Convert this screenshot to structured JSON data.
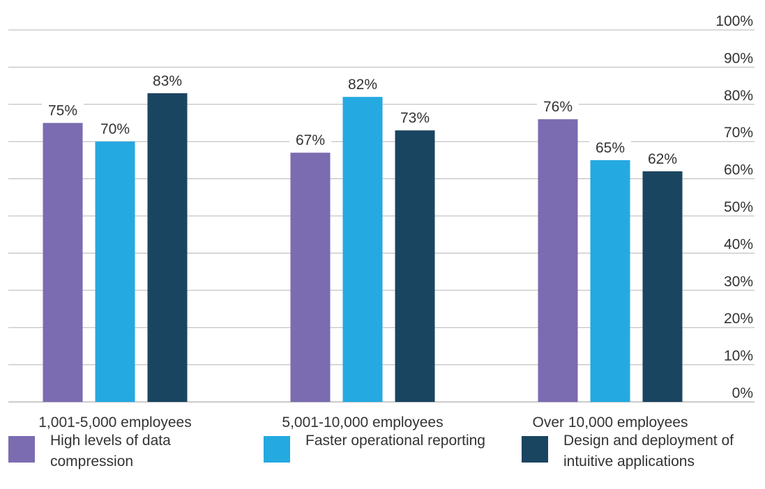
{
  "chart_data": {
    "type": "bar",
    "title": "",
    "xlabel": "",
    "ylabel": "",
    "ylim": [
      0,
      100
    ],
    "y_ticks": [
      "0%",
      "10%",
      "20%",
      "30%",
      "40%",
      "50%",
      "60%",
      "70%",
      "80%",
      "90%",
      "100%"
    ],
    "y_axis_side": "right",
    "grid": true,
    "legend_position": "bottom",
    "categories": [
      "1,001-5,000 employees",
      "5,001-10,000 employees",
      "Over 10,000 employees"
    ],
    "series": [
      {
        "name": "High levels of data compression",
        "color": "#7b6bb0",
        "values": [
          75,
          67,
          76
        ],
        "labels": [
          "75%",
          "67%",
          "76%"
        ]
      },
      {
        "name": "Faster operational reporting",
        "color": "#24a9e1",
        "values": [
          70,
          82,
          65
        ],
        "labels": [
          "70%",
          "82%",
          "65%"
        ]
      },
      {
        "name": "Design and deployment of intuitive applications",
        "color": "#1a4560",
        "values": [
          83,
          73,
          62
        ],
        "labels": [
          "83%",
          "73%",
          "62%"
        ]
      }
    ]
  }
}
